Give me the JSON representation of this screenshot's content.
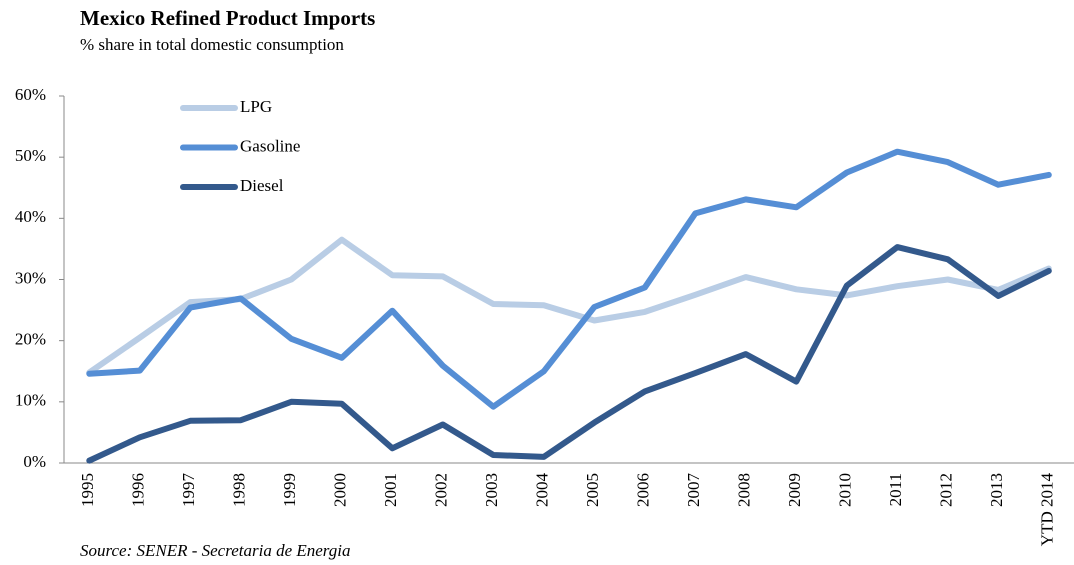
{
  "chart_data": {
    "type": "line",
    "title": "Mexico Refined Product Imports",
    "subtitle": "% share in total domestic consumption",
    "source": "Source: SENER - Secretaria de Energia",
    "categories": [
      "1995",
      "1996",
      "1997",
      "1998",
      "1999",
      "2000",
      "2001",
      "2002",
      "2003",
      "2004",
      "2005",
      "2006",
      "2007",
      "2008",
      "2009",
      "2010",
      "2011",
      "2012",
      "2013",
      "YTD 2014"
    ],
    "series": [
      {
        "name": "LPG",
        "color": "#b9cde5",
        "values": [
          14.8,
          20.5,
          26.3,
          26.8,
          30,
          36.5,
          30.7,
          30.5,
          26,
          25.8,
          23.3,
          24.7,
          27.5,
          30.4,
          28.4,
          27.4,
          28.9,
          30,
          28.3,
          31.8
        ]
      },
      {
        "name": "Gasoline",
        "color": "#558ed5",
        "values": [
          14.6,
          15.1,
          25.4,
          26.9,
          20.3,
          17.2,
          24.9,
          15.9,
          9.2,
          15,
          25.5,
          28.7,
          40.8,
          43.1,
          41.8,
          47.5,
          50.9,
          49.2,
          45.5,
          47.1
        ]
      },
      {
        "name": "Diesel",
        "color": "#33598c",
        "values": [
          0.4,
          4.2,
          6.9,
          7,
          10,
          9.7,
          2.4,
          6.3,
          1.3,
          1,
          6.6,
          11.7,
          14.7,
          17.8,
          13.3,
          29,
          35.3,
          33.3,
          27.3,
          31.4
        ]
      }
    ],
    "ylim": [
      0,
      60
    ],
    "yticks": [
      {
        "value": 0,
        "label": "0%"
      },
      {
        "value": 10,
        "label": "10%"
      },
      {
        "value": 20,
        "label": "20%"
      },
      {
        "value": 30,
        "label": "30%"
      },
      {
        "value": 40,
        "label": "40%"
      },
      {
        "value": 50,
        "label": "50%"
      },
      {
        "value": 60,
        "label": "60%"
      }
    ],
    "grid": false,
    "legend": "top-left"
  }
}
